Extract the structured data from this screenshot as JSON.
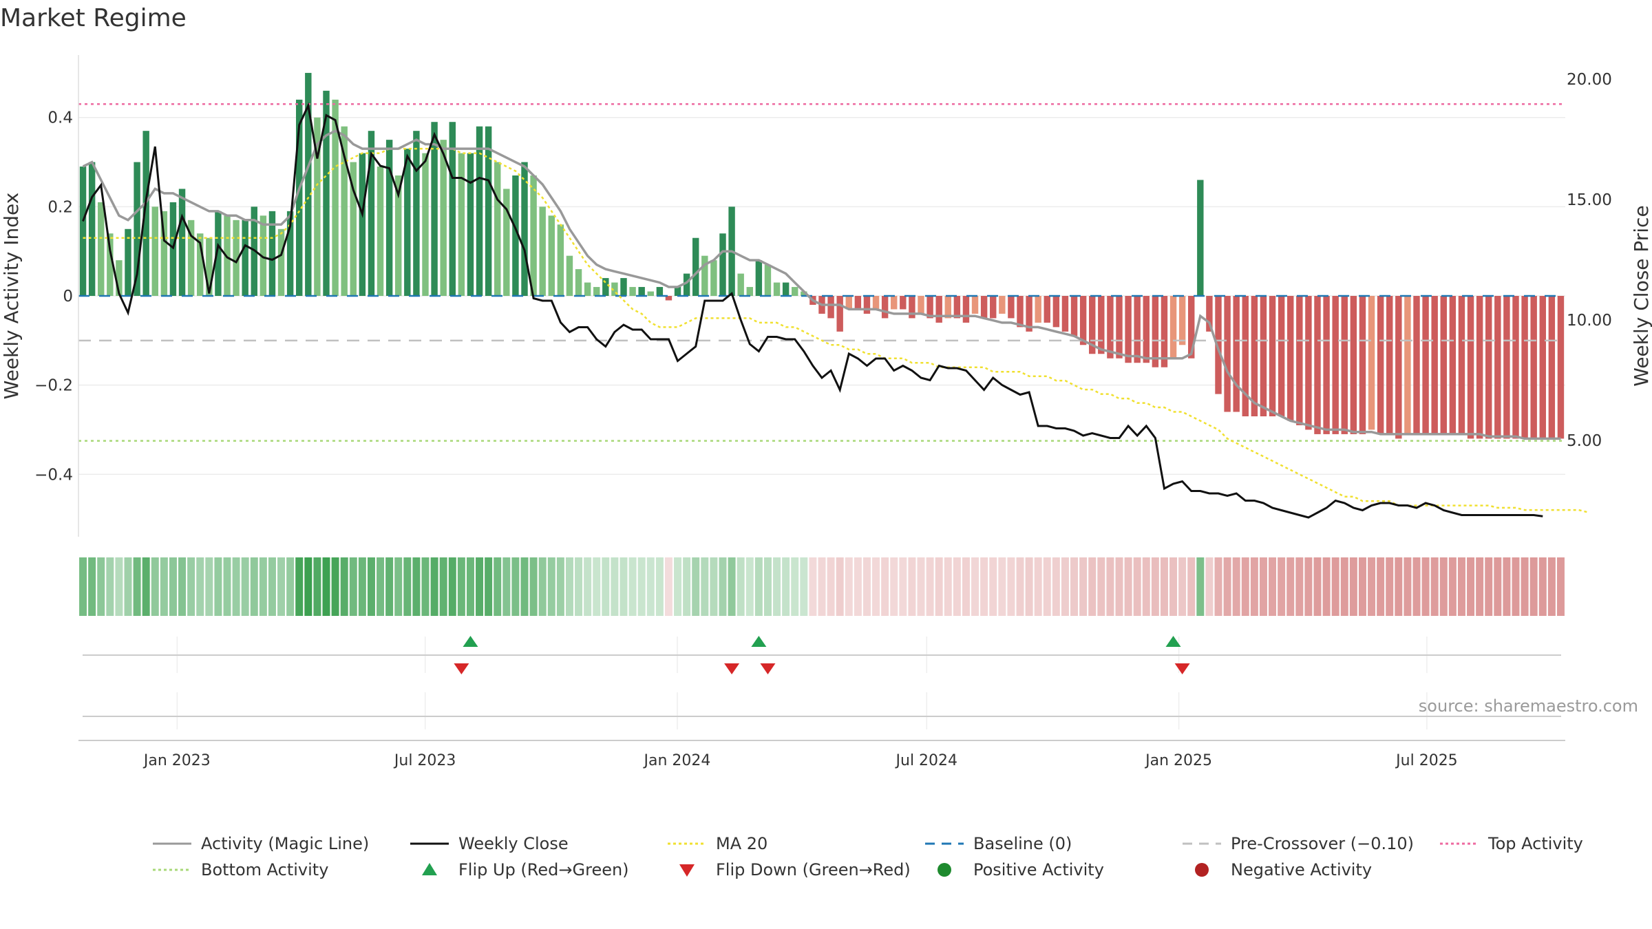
{
  "title": "Market Regime",
  "source": "source: sharemaestro.com",
  "colors": {
    "pos_dark": "#2e8b57",
    "pos_light": "#7fc07f",
    "neg_dark": "#cd5c5c",
    "neg_light": "#e8967a",
    "magic": "#999999",
    "close": "#111111",
    "ma20": "#f0e030",
    "baseline": "#1f77b4",
    "precross": "#c0c0c0",
    "top": "#ee6aa0",
    "bottom": "#a8d878",
    "flip_up": "#22a050",
    "flip_down": "#d62728"
  },
  "chart_data": {
    "type": "bar",
    "yleft_label": "Weekly Activity Index",
    "yright_label": "Weekly Close Price",
    "yleft_ticks": [
      "0.4",
      "0.2",
      "0",
      "−0.2",
      "−0.4"
    ],
    "yright_ticks": [
      "20.00",
      "15.00",
      "10.00",
      "5.00"
    ],
    "ylim_left": [
      -0.54,
      0.54
    ],
    "ylim_right": [
      1.0,
      21.0
    ],
    "x_ticks": [
      "Jan 2023",
      "Jul 2023",
      "Jan 2024",
      "Jul 2024",
      "Jan 2025",
      "Jul 2025"
    ],
    "date_range": [
      "2022-10-21",
      "2025-10-10"
    ],
    "levels": {
      "top": 0.43,
      "bottom": -0.325,
      "pre_crossover": -0.1,
      "baseline": 0
    },
    "activity_weekly": [
      0.29,
      0.3,
      0.21,
      0.14,
      0.08,
      0.15,
      0.3,
      0.37,
      0.2,
      0.19,
      0.21,
      0.24,
      0.17,
      0.14,
      0.13,
      0.19,
      0.18,
      0.17,
      0.17,
      0.2,
      0.18,
      0.19,
      0.15,
      0.19,
      0.44,
      0.5,
      0.4,
      0.46,
      0.44,
      0.38,
      0.3,
      0.32,
      0.37,
      0.29,
      0.35,
      0.27,
      0.33,
      0.37,
      0.32,
      0.39,
      0.35,
      0.39,
      0.32,
      0.32,
      0.38,
      0.38,
      0.3,
      0.24,
      0.27,
      0.3,
      0.27,
      0.2,
      0.18,
      0.16,
      0.09,
      0.06,
      0.03,
      0.02,
      0.04,
      0.03,
      0.04,
      0.02,
      0.02,
      0.01,
      0.02,
      -0.01,
      0.02,
      0.05,
      0.13,
      0.09,
      0.08,
      0.14,
      0.2,
      0.05,
      0.02,
      0.08,
      0.07,
      0.03,
      0.03,
      0.02,
      0.01,
      -0.02,
      -0.04,
      -0.05,
      -0.08,
      -0.03,
      -0.03,
      -0.04,
      -0.03,
      -0.05,
      -0.03,
      -0.03,
      -0.05,
      -0.04,
      -0.05,
      -0.06,
      -0.05,
      -0.05,
      -0.06,
      -0.04,
      -0.05,
      -0.05,
      -0.04,
      -0.05,
      -0.07,
      -0.08,
      -0.06,
      -0.06,
      -0.07,
      -0.08,
      -0.09,
      -0.11,
      -0.13,
      -0.13,
      -0.14,
      -0.14,
      -0.15,
      -0.15,
      -0.15,
      -0.16,
      -0.16,
      -0.14,
      -0.11,
      -0.14,
      0.26,
      -0.08,
      -0.22,
      -0.26,
      -0.26,
      -0.27,
      -0.27,
      -0.27,
      -0.27,
      -0.27,
      -0.28,
      -0.29,
      -0.3,
      -0.31,
      -0.31,
      -0.31,
      -0.31,
      -0.31,
      -0.31,
      -0.3,
      -0.31,
      -0.31,
      -0.32,
      -0.31,
      -0.31,
      -0.31,
      -0.31,
      -0.31,
      -0.31,
      -0.31,
      -0.32,
      -0.32,
      -0.32,
      -0.32,
      -0.32,
      -0.32,
      -0.32,
      -0.32,
      -0.32,
      -0.32,
      -0.32
    ],
    "magic_line": [
      0.29,
      0.3,
      0.26,
      0.22,
      0.18,
      0.17,
      0.19,
      0.21,
      0.24,
      0.23,
      0.23,
      0.22,
      0.21,
      0.2,
      0.19,
      0.19,
      0.18,
      0.18,
      0.17,
      0.17,
      0.16,
      0.16,
      0.16,
      0.18,
      0.24,
      0.29,
      0.34,
      0.36,
      0.37,
      0.36,
      0.34,
      0.33,
      0.33,
      0.33,
      0.33,
      0.33,
      0.34,
      0.35,
      0.34,
      0.34,
      0.33,
      0.33,
      0.33,
      0.33,
      0.33,
      0.33,
      0.32,
      0.31,
      0.3,
      0.29,
      0.27,
      0.25,
      0.22,
      0.19,
      0.15,
      0.12,
      0.09,
      0.07,
      0.06,
      0.055,
      0.05,
      0.045,
      0.04,
      0.035,
      0.03,
      0.02,
      0.02,
      0.03,
      0.05,
      0.07,
      0.08,
      0.1,
      0.1,
      0.09,
      0.08,
      0.08,
      0.07,
      0.06,
      0.05,
      0.03,
      0.01,
      -0.01,
      -0.02,
      -0.02,
      -0.02,
      -0.03,
      -0.03,
      -0.03,
      -0.03,
      -0.035,
      -0.04,
      -0.04,
      -0.04,
      -0.04,
      -0.045,
      -0.045,
      -0.045,
      -0.045,
      -0.045,
      -0.045,
      -0.05,
      -0.055,
      -0.06,
      -0.06,
      -0.065,
      -0.07,
      -0.07,
      -0.075,
      -0.08,
      -0.085,
      -0.09,
      -0.1,
      -0.11,
      -0.12,
      -0.125,
      -0.13,
      -0.135,
      -0.135,
      -0.14,
      -0.14,
      -0.14,
      -0.14,
      -0.14,
      -0.13,
      -0.045,
      -0.06,
      -0.12,
      -0.17,
      -0.2,
      -0.22,
      -0.24,
      -0.25,
      -0.26,
      -0.27,
      -0.28,
      -0.285,
      -0.29,
      -0.295,
      -0.3,
      -0.3,
      -0.3,
      -0.305,
      -0.305,
      -0.305,
      -0.31,
      -0.31,
      -0.31,
      -0.31,
      -0.31,
      -0.31,
      -0.31,
      -0.31,
      -0.31,
      -0.31,
      -0.31,
      -0.31,
      -0.315,
      -0.315,
      -0.315,
      -0.315,
      -0.32,
      -0.32,
      -0.32,
      -0.32,
      -0.32
    ],
    "ma20": [
      0.13,
      0.13,
      0.13,
      0.13,
      0.13,
      0.13,
      0.13,
      0.13,
      0.13,
      0.13,
      0.13,
      0.13,
      0.13,
      0.13,
      0.13,
      0.13,
      0.13,
      0.13,
      0.13,
      0.13,
      0.13,
      0.13,
      0.14,
      0.16,
      0.19,
      0.22,
      0.25,
      0.27,
      0.29,
      0.3,
      0.31,
      0.32,
      0.32,
      0.32,
      0.33,
      0.33,
      0.33,
      0.33,
      0.33,
      0.33,
      0.33,
      0.33,
      0.32,
      0.32,
      0.32,
      0.31,
      0.3,
      0.29,
      0.28,
      0.26,
      0.24,
      0.22,
      0.19,
      0.16,
      0.13,
      0.1,
      0.07,
      0.05,
      0.03,
      0.01,
      -0.01,
      -0.03,
      -0.04,
      -0.06,
      -0.07,
      -0.07,
      -0.07,
      -0.06,
      -0.05,
      -0.05,
      -0.05,
      -0.05,
      -0.05,
      -0.05,
      -0.05,
      -0.06,
      -0.06,
      -0.06,
      -0.07,
      -0.07,
      -0.08,
      -0.09,
      -0.1,
      -0.11,
      -0.11,
      -0.12,
      -0.12,
      -0.13,
      -0.13,
      -0.14,
      -0.14,
      -0.14,
      -0.15,
      -0.15,
      -0.15,
      -0.16,
      -0.16,
      -0.16,
      -0.16,
      -0.16,
      -0.16,
      -0.17,
      -0.17,
      -0.17,
      -0.17,
      -0.18,
      -0.18,
      -0.18,
      -0.19,
      -0.19,
      -0.2,
      -0.21,
      -0.21,
      -0.22,
      -0.22,
      -0.23,
      -0.23,
      -0.24,
      -0.24,
      -0.25,
      -0.25,
      -0.26,
      -0.26,
      -0.27,
      -0.28,
      -0.29,
      -0.3,
      -0.32,
      -0.33,
      -0.34,
      -0.35,
      -0.36,
      -0.37,
      -0.38,
      -0.39,
      -0.4,
      -0.41,
      -0.42,
      -0.43,
      -0.44,
      -0.45,
      -0.45,
      -0.46,
      -0.46,
      -0.46,
      -0.46,
      -0.47,
      -0.47,
      -0.47,
      -0.47,
      -0.47,
      -0.47,
      -0.47,
      -0.47,
      -0.47,
      -0.47,
      -0.47,
      -0.475,
      -0.475,
      -0.475,
      -0.48,
      -0.48,
      -0.48,
      -0.48,
      -0.48,
      -0.48,
      -0.48,
      -0.485
    ],
    "weekly_close": [
      14.1,
      15.1,
      15.6,
      12.9,
      11.1,
      10.3,
      11.9,
      15.0,
      17.2,
      13.3,
      13.0,
      14.3,
      13.5,
      13.2,
      11.1,
      13.1,
      12.6,
      12.4,
      13.1,
      12.9,
      12.6,
      12.5,
      12.7,
      13.9,
      18.1,
      18.9,
      16.7,
      18.5,
      18.3,
      16.8,
      15.4,
      14.4,
      16.9,
      16.4,
      16.3,
      15.2,
      16.8,
      16.2,
      16.6,
      17.7,
      16.9,
      15.9,
      15.9,
      15.7,
      15.9,
      15.8,
      15.0,
      14.6,
      13.8,
      12.9,
      10.9,
      10.8,
      10.8,
      9.9,
      9.5,
      9.7,
      9.7,
      9.2,
      8.9,
      9.5,
      9.8,
      9.6,
      9.6,
      9.2,
      9.2,
      9.2,
      8.3,
      8.6,
      8.9,
      10.8,
      10.8,
      10.8,
      11.1,
      10.0,
      9.0,
      8.7,
      9.3,
      9.3,
      9.2,
      9.2,
      8.7,
      8.1,
      7.6,
      7.9,
      7.1,
      8.6,
      8.4,
      8.1,
      8.4,
      8.4,
      7.9,
      8.1,
      7.9,
      7.6,
      7.5,
      8.1,
      8.0,
      8.0,
      7.9,
      7.5,
      7.1,
      7.6,
      7.3,
      7.1,
      6.9,
      7.0,
      5.6,
      5.6,
      5.5,
      5.5,
      5.4,
      5.2,
      5.3,
      5.2,
      5.1,
      5.1,
      5.6,
      5.2,
      5.6,
      5.1,
      3.0,
      3.2,
      3.3,
      2.9,
      2.9,
      2.8,
      2.8,
      2.7,
      2.8,
      2.5,
      2.5,
      2.4,
      2.2,
      2.1,
      2.0,
      1.9,
      1.8,
      2.0,
      2.2,
      2.5,
      2.4,
      2.2,
      2.1,
      2.3,
      2.4,
      2.4,
      2.3,
      2.3,
      2.2,
      2.4,
      2.3,
      2.1,
      2.0,
      1.9,
      1.9,
      1.9,
      1.9,
      1.9,
      1.9,
      1.9,
      1.9,
      1.9,
      1.85
    ],
    "flip_up_weeks": [
      43,
      75,
      121
    ],
    "flip_down_weeks": [
      42,
      72,
      76,
      122
    ],
    "legend": [
      {
        "label": "Activity (Magic Line)",
        "kind": "line-solid-gray"
      },
      {
        "label": "Weekly Close",
        "kind": "line-solid-black"
      },
      {
        "label": "MA 20",
        "kind": "line-dotted-yellow"
      },
      {
        "label": "Baseline (0)",
        "kind": "line-dashed-blue"
      },
      {
        "label": "Pre-Crossover (−0.10)",
        "kind": "line-dashed-gray"
      },
      {
        "label": "Top Activity",
        "kind": "line-dotted-pink"
      },
      {
        "label": "Bottom Activity",
        "kind": "line-dotted-green"
      },
      {
        "label": "Flip Up (Red→Green)",
        "kind": "triangle-up"
      },
      {
        "label": "Flip Down (Green→Red)",
        "kind": "triangle-down"
      },
      {
        "label": "Positive Activity",
        "kind": "dot-green"
      },
      {
        "label": "Negative Activity",
        "kind": "dot-red"
      }
    ]
  }
}
